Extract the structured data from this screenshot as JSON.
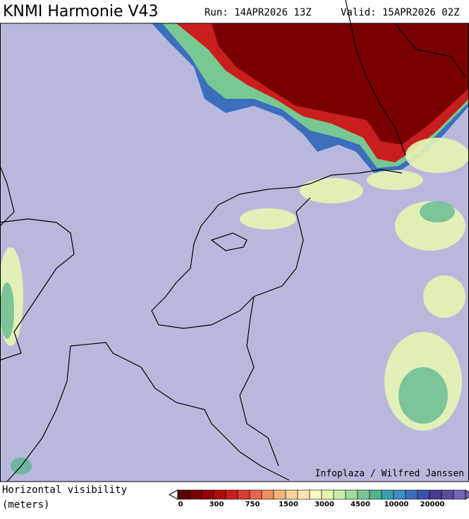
{
  "header": {
    "title": "KNMI Harmonie V43",
    "run": "Run: 14APR2026 13Z",
    "valid": "Valid: 15APR2026 02Z"
  },
  "credit": "Infoplaza / Wilfred Janssen",
  "legend": {
    "title": [
      "Horizontal visibility",
      "(meters)"
    ],
    "ticks": [
      0,
      300,
      750,
      1500,
      3000,
      4500,
      10000,
      20000
    ],
    "colors": [
      "#5a0000",
      "#7a0000",
      "#960000",
      "#b00a0a",
      "#c81e1e",
      "#dc3c32",
      "#e8644a",
      "#f08c5a",
      "#f5b478",
      "#f8d296",
      "#fae6b4",
      "#fafac8",
      "#e6f5b4",
      "#c8ebaa",
      "#a0dc9b",
      "#78c891",
      "#50b48c",
      "#3ca0aa",
      "#3c8cc8",
      "#3c6ebe",
      "#3c50aa",
      "#463c96",
      "#5a4b9b",
      "#7864b4"
    ]
  }
}
